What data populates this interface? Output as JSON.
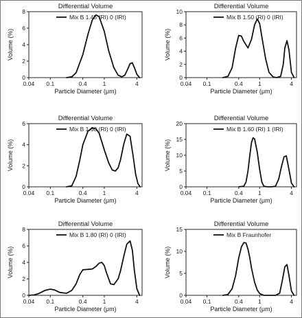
{
  "chart_data": [
    {
      "type": "line",
      "title": "Differential Volume",
      "xlabel": "Particle Diameter (μm)",
      "ylabel": "Volume (%)",
      "legend": "Mix B  1.45 (RI) 0 (IRI)",
      "legend_position": "top",
      "x_scale": "log",
      "xlim": [
        0.04,
        5
      ],
      "xticks": [
        "0.04",
        "0.1",
        "0.4",
        "1",
        "4"
      ],
      "ylim": [
        0,
        8
      ],
      "yticks": [
        "0",
        "2",
        "4",
        "6",
        "8"
      ],
      "grid": false,
      "series": [
        {
          "x": [
            0.2,
            0.25,
            0.3,
            0.4,
            0.5,
            0.6,
            0.7,
            0.8,
            1.0,
            1.2,
            1.5,
            1.8,
            2.1,
            2.4,
            2.7,
            3.0,
            3.3,
            3.6,
            4.0,
            4.5
          ],
          "y": [
            0,
            0.1,
            0.6,
            2.8,
            5.3,
            7.0,
            7.6,
            7.4,
            5.6,
            3.3,
            1.2,
            0.3,
            0.1,
            0.3,
            1.0,
            1.7,
            1.8,
            1.2,
            0.4,
            0
          ]
        }
      ]
    },
    {
      "type": "line",
      "title": "Differential Volume",
      "xlabel": "Particle Diameter (μm)",
      "ylabel": "Volume (%)",
      "legend": "Mix B  1.50 (RI) 0 (IRI)",
      "legend_position": "top",
      "x_scale": "log",
      "xlim": [
        0.04,
        5
      ],
      "xticks": [
        "0.04",
        "0.1",
        "0.4",
        "1",
        "4"
      ],
      "ylim": [
        0,
        10
      ],
      "yticks": [
        "0",
        "2",
        "4",
        "6",
        "8",
        "10"
      ],
      "grid": false,
      "series": [
        {
          "x": [
            0.2,
            0.25,
            0.3,
            0.35,
            0.4,
            0.45,
            0.5,
            0.6,
            0.7,
            0.8,
            0.9,
            1.0,
            1.1,
            1.3,
            1.5,
            1.8,
            2.1,
            2.5,
            2.8,
            3.0,
            3.3,
            3.6,
            4.0,
            4.5
          ],
          "y": [
            0,
            0.2,
            1.5,
            4.5,
            6.4,
            6.3,
            5.5,
            4.5,
            5.8,
            8.0,
            8.9,
            8.2,
            6.2,
            2.8,
            0.8,
            0.1,
            0,
            0.2,
            2.0,
            4.5,
            5.6,
            4.2,
            0.8,
            0
          ]
        }
      ]
    },
    {
      "type": "line",
      "title": "Differential Volume",
      "xlabel": "Particle Diameter (μm)",
      "ylabel": "Volume (%)",
      "legend": "Mix B  1.60 (RI) 0 (IRI)",
      "legend_position": "top",
      "x_scale": "log",
      "xlim": [
        0.04,
        5
      ],
      "xticks": [
        "0.04",
        "0.1",
        "0.4",
        "1",
        "4"
      ],
      "ylim": [
        0,
        6
      ],
      "yticks": [
        "0",
        "2",
        "4",
        "6"
      ],
      "grid": false,
      "series": [
        {
          "x": [
            0.2,
            0.25,
            0.3,
            0.35,
            0.4,
            0.5,
            0.6,
            0.7,
            0.8,
            1.0,
            1.2,
            1.4,
            1.6,
            1.8,
            2.0,
            2.3,
            2.6,
            3.0,
            3.4,
            3.8,
            4.2,
            4.6
          ],
          "y": [
            0,
            0.1,
            1.0,
            2.5,
            4.0,
            5.3,
            5.6,
            5.5,
            5.1,
            3.5,
            2.3,
            1.6,
            1.5,
            1.8,
            2.6,
            4.1,
            5.0,
            4.8,
            3.0,
            1.2,
            0.3,
            0
          ]
        }
      ]
    },
    {
      "type": "line",
      "title": "Differential Volume",
      "xlabel": "Particle Diameter (μm)",
      "ylabel": "Volume (%)",
      "legend": "Mix B  1.60 (RI) 1 (IRI)",
      "legend_position": "top",
      "x_scale": "log",
      "xlim": [
        0.04,
        5
      ],
      "xticks": [
        "0.04",
        "0.1",
        "0.4",
        "1",
        "4"
      ],
      "ylim": [
        0,
        20
      ],
      "yticks": [
        "0",
        "5",
        "10",
        "15",
        "20"
      ],
      "grid": false,
      "series": [
        {
          "x": [
            0.4,
            0.5,
            0.55,
            0.6,
            0.65,
            0.7,
            0.75,
            0.8,
            0.9,
            1.0,
            1.1,
            1.2,
            1.4,
            1.7,
            2.0,
            2.3,
            2.6,
            2.9,
            3.2,
            3.6,
            4.0,
            4.5
          ],
          "y": [
            0,
            0.2,
            1.5,
            5.0,
            10.0,
            14.0,
            15.5,
            15.2,
            11.0,
            5.5,
            1.5,
            0.2,
            0,
            0,
            0.2,
            2.5,
            6.5,
            9.5,
            9.8,
            5.5,
            1.2,
            0
          ]
        }
      ]
    },
    {
      "type": "line",
      "title": "Differential Volume",
      "xlabel": "Particle Diameter (μm)",
      "ylabel": "Volume (%)",
      "legend": "Mix B  1.80 (RI) 0 (IRI)",
      "legend_position": "top",
      "x_scale": "log",
      "xlim": [
        0.04,
        5
      ],
      "xticks": [
        "0.04",
        "0.1",
        "0.4",
        "1",
        "4"
      ],
      "ylim": [
        0,
        8
      ],
      "yticks": [
        "0",
        "2",
        "4",
        "6",
        "8"
      ],
      "grid": false,
      "series": [
        {
          "x": [
            0.04,
            0.05,
            0.06,
            0.08,
            0.1,
            0.12,
            0.15,
            0.2,
            0.25,
            0.3,
            0.35,
            0.4,
            0.5,
            0.6,
            0.7,
            0.8,
            0.9,
            1.0,
            1.1,
            1.3,
            1.5,
            1.8,
            2.0,
            2.3,
            2.6,
            3.0,
            3.3,
            3.6,
            4.0,
            4.5
          ],
          "y": [
            0,
            0.05,
            0.2,
            0.6,
            0.75,
            0.65,
            0.35,
            0.25,
            0.6,
            1.4,
            2.5,
            3.1,
            3.15,
            3.2,
            3.5,
            3.9,
            4.0,
            3.6,
            2.7,
            1.4,
            1.3,
            2.0,
            3.0,
            4.8,
            6.2,
            6.6,
            5.5,
            3.0,
            0.8,
            0
          ]
        }
      ]
    },
    {
      "type": "line",
      "title": "Differential Volume",
      "xlabel": "Particle Diameter (μm)",
      "ylabel": "Volume (%)",
      "legend": "Mix B  Fraunhofer",
      "legend_position": "top",
      "x_scale": "log",
      "xlim": [
        0.04,
        5
      ],
      "xticks": [
        "0.04",
        "0.1",
        "0.4",
        "1",
        "4"
      ],
      "ylim": [
        0,
        15
      ],
      "yticks": [
        "0",
        "5",
        "10",
        "15"
      ],
      "grid": false,
      "series": [
        {
          "x": [
            0.2,
            0.25,
            0.3,
            0.35,
            0.4,
            0.45,
            0.5,
            0.55,
            0.6,
            0.65,
            0.7,
            0.8,
            0.9,
            1.0,
            1.2,
            1.5,
            2.0,
            2.4,
            2.7,
            3.0,
            3.3,
            3.6,
            4.0,
            4.5
          ],
          "y": [
            0,
            0.2,
            1.5,
            4.5,
            8.5,
            11.0,
            12.0,
            11.9,
            10.5,
            8.5,
            6.2,
            3.0,
            1.2,
            0.4,
            0,
            0,
            0,
            0.5,
            3.5,
            6.5,
            7.0,
            4.5,
            1.0,
            0
          ]
        }
      ]
    }
  ]
}
